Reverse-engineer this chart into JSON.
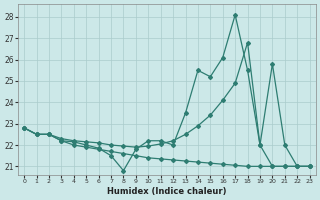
{
  "xlabel": "Humidex (Indice chaleur)",
  "xlim": [
    -0.5,
    23.5
  ],
  "ylim": [
    20.6,
    28.6
  ],
  "yticks": [
    21,
    22,
    23,
    24,
    25,
    26,
    27,
    28
  ],
  "xticks": [
    0,
    1,
    2,
    3,
    4,
    5,
    6,
    7,
    8,
    9,
    10,
    11,
    12,
    13,
    14,
    15,
    16,
    17,
    18,
    19,
    20,
    21,
    22,
    23
  ],
  "background_color": "#cce8e8",
  "line_color": "#2e7d72",
  "grid_color": "#aacccc",
  "line1_x": [
    0,
    1,
    2,
    3,
    4,
    5,
    6,
    7,
    8,
    9,
    10,
    11,
    12,
    13,
    14,
    15,
    16,
    17,
    18,
    19,
    20,
    21,
    22,
    23
  ],
  "line1_y": [
    22.8,
    22.5,
    22.5,
    22.2,
    22.15,
    22.0,
    21.85,
    21.5,
    20.8,
    21.8,
    22.2,
    22.2,
    22.0,
    23.5,
    25.5,
    25.2,
    26.1,
    28.1,
    25.5,
    22.0,
    25.8,
    22.0,
    21.0,
    21.0
  ],
  "line2_x": [
    0,
    1,
    2,
    3,
    4,
    5,
    6,
    7,
    8,
    9,
    10,
    11,
    12,
    13,
    14,
    15,
    16,
    17,
    18,
    19,
    20,
    21,
    22,
    23
  ],
  "line2_y": [
    22.8,
    22.5,
    22.5,
    22.3,
    22.2,
    22.15,
    22.1,
    22.0,
    21.95,
    21.9,
    21.95,
    22.05,
    22.2,
    22.5,
    22.9,
    23.4,
    24.1,
    24.9,
    26.8,
    22.0,
    21.0,
    21.0,
    21.0,
    21.0
  ],
  "line3_x": [
    0,
    1,
    2,
    3,
    4,
    5,
    6,
    7,
    8,
    9,
    10,
    11,
    12,
    13,
    14,
    15,
    16,
    17,
    18,
    19,
    20,
    21,
    22,
    23
  ],
  "line3_y": [
    22.8,
    22.5,
    22.5,
    22.2,
    22.0,
    21.9,
    21.8,
    21.7,
    21.6,
    21.5,
    21.4,
    21.35,
    21.3,
    21.25,
    21.2,
    21.15,
    21.1,
    21.05,
    21.0,
    21.0,
    21.0,
    21.0,
    21.0,
    21.0
  ]
}
